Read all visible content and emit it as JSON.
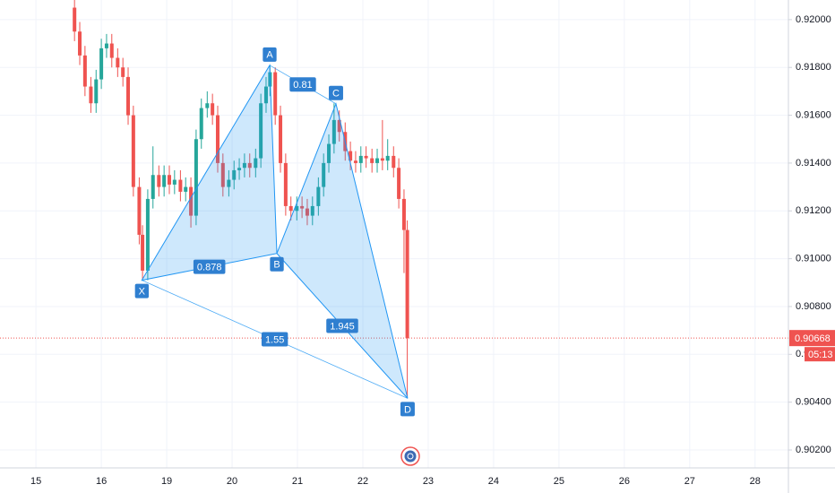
{
  "chart_data": {
    "type": "candlestick",
    "xticks": [
      {
        "value": 0,
        "label": "15"
      },
      {
        "value": 1,
        "label": "16"
      },
      {
        "value": 2,
        "label": "19"
      },
      {
        "value": 3,
        "label": "20"
      },
      {
        "value": 4,
        "label": "21"
      },
      {
        "value": 5,
        "label": "22"
      },
      {
        "value": 6,
        "label": "23"
      },
      {
        "value": 7,
        "label": "24"
      },
      {
        "value": 8,
        "label": "25"
      },
      {
        "value": 9,
        "label": "26"
      },
      {
        "value": 10,
        "label": "27"
      },
      {
        "value": 11,
        "label": "28"
      }
    ],
    "xlim": [
      -0.55,
      11.51
    ],
    "ylim": [
      0.90125,
      0.92082
    ],
    "yticks": [
      {
        "value": 0.902,
        "label": "0.90200"
      },
      {
        "value": 0.904,
        "label": "0.90400"
      },
      {
        "value": 0.906,
        "label": "0.90600"
      },
      {
        "value": 0.908,
        "label": "0.90800"
      },
      {
        "value": 0.91,
        "label": "0.91000"
      },
      {
        "value": 0.912,
        "label": "0.91200"
      },
      {
        "value": 0.914,
        "label": "0.91400"
      },
      {
        "value": 0.916,
        "label": "0.91600"
      },
      {
        "value": 0.918,
        "label": "0.91800"
      },
      {
        "value": 0.92,
        "label": "0.92000"
      }
    ],
    "grid": true,
    "up_color": "#26a69a",
    "down_color": "#ef5350",
    "x": [
      0.59,
      0.67,
      0.75,
      0.84,
      0.92,
      1.0,
      1.08,
      1.16,
      1.25,
      1.33,
      1.41,
      1.49,
      1.58,
      1.63,
      1.71,
      1.79,
      1.88,
      1.96,
      2.04,
      2.12,
      2.21,
      2.29,
      2.37,
      2.45,
      2.53,
      2.62,
      2.7,
      2.78,
      2.86,
      2.95,
      3.03,
      3.11,
      3.19,
      3.27,
      3.36,
      3.44,
      3.52,
      3.58,
      3.66,
      3.74,
      3.82,
      3.9,
      3.99,
      4.07,
      4.15,
      4.23,
      4.32,
      4.4,
      4.48,
      4.56,
      4.64,
      4.73,
      4.81,
      4.89,
      4.97,
      5.05,
      5.14,
      5.22,
      5.3,
      5.38,
      5.47,
      5.55,
      5.63,
      5.68
    ],
    "open": [
      0.9205,
      0.9195,
      0.9185,
      0.9172,
      0.9165,
      0.9175,
      0.9188,
      0.919,
      0.9184,
      0.918,
      0.9176,
      0.916,
      0.913,
      0.911,
      0.9095,
      0.9125,
      0.9135,
      0.913,
      0.9135,
      0.9131,
      0.9133,
      0.9128,
      0.913,
      0.9118,
      0.915,
      0.9163,
      0.9165,
      0.916,
      0.914,
      0.913,
      0.9133,
      0.9137,
      0.9138,
      0.914,
      0.9138,
      0.9142,
      0.9165,
      0.9172,
      0.9178,
      0.916,
      0.914,
      0.9122,
      0.912,
      0.9122,
      0.9121,
      0.9118,
      0.9122,
      0.913,
      0.914,
      0.9148,
      0.9158,
      0.9153,
      0.9145,
      0.9141,
      0.914,
      0.9143,
      0.9142,
      0.914,
      0.9142,
      0.9141,
      0.9143,
      0.9138,
      0.9125,
      0.9112
    ],
    "high": [
      0.9209,
      0.9199,
      0.9189,
      0.9176,
      0.9179,
      0.9192,
      0.9194,
      0.9194,
      0.9188,
      0.9184,
      0.918,
      0.9164,
      0.9134,
      0.9114,
      0.9129,
      0.9147,
      0.9139,
      0.9139,
      0.9139,
      0.9137,
      0.9137,
      0.9134,
      0.9134,
      0.9154,
      0.9167,
      0.917,
      0.9169,
      0.9164,
      0.9144,
      0.9137,
      0.9141,
      0.9142,
      0.9144,
      0.9144,
      0.9146,
      0.9169,
      0.9176,
      0.91809,
      0.918,
      0.9164,
      0.9144,
      0.9126,
      0.9126,
      0.9126,
      0.9125,
      0.9126,
      0.9134,
      0.9144,
      0.9152,
      0.9165,
      0.9162,
      0.9157,
      0.9149,
      0.9145,
      0.9147,
      0.9147,
      0.9146,
      0.9146,
      0.9158,
      0.915,
      0.9147,
      0.9142,
      0.9129,
      0.9116
    ],
    "low": [
      0.9191,
      0.9181,
      0.9168,
      0.9161,
      0.9161,
      0.9171,
      0.9184,
      0.918,
      0.9176,
      0.9172,
      0.9156,
      0.9126,
      0.9106,
      0.9091,
      0.9091,
      0.9121,
      0.9126,
      0.9126,
      0.9127,
      0.9127,
      0.9124,
      0.9124,
      0.9113,
      0.9114,
      0.9146,
      0.9159,
      0.9156,
      0.9136,
      0.9126,
      0.9126,
      0.9129,
      0.9133,
      0.9134,
      0.9134,
      0.9134,
      0.9138,
      0.9161,
      0.9168,
      0.9156,
      0.9136,
      0.9118,
      0.9116,
      0.9116,
      0.9117,
      0.9114,
      0.9114,
      0.9118,
      0.9126,
      0.9136,
      0.9144,
      0.9149,
      0.9141,
      0.9137,
      0.9136,
      0.9136,
      0.9138,
      0.9136,
      0.9136,
      0.9137,
      0.9137,
      0.9134,
      0.9121,
      0.9094,
      0.90416
    ],
    "close": [
      0.9195,
      0.9185,
      0.9172,
      0.9165,
      0.9175,
      0.9188,
      0.919,
      0.9184,
      0.918,
      0.9176,
      0.916,
      0.913,
      0.911,
      0.9095,
      0.9125,
      0.9135,
      0.913,
      0.9135,
      0.9131,
      0.9133,
      0.9128,
      0.913,
      0.9118,
      0.915,
      0.9163,
      0.9165,
      0.916,
      0.914,
      0.913,
      0.9133,
      0.9137,
      0.9138,
      0.914,
      0.9138,
      0.9142,
      0.9165,
      0.9172,
      0.9178,
      0.916,
      0.914,
      0.9122,
      0.912,
      0.9122,
      0.9121,
      0.9118,
      0.9122,
      0.913,
      0.914,
      0.9148,
      0.9158,
      0.9153,
      0.9145,
      0.9141,
      0.914,
      0.9143,
      0.9142,
      0.914,
      0.9142,
      0.9141,
      0.9143,
      0.9138,
      0.9125,
      0.9112,
      0.90668
    ],
    "current_price": 0.90668,
    "countdown": "05:13",
    "pattern": {
      "color": "#2196f3",
      "points": [
        {
          "label": "X",
          "x": 1.62,
          "y": 0.9091
        },
        {
          "label": "A",
          "x": 3.575,
          "y": 0.91809
        },
        {
          "label": "B",
          "x": 3.685,
          "y": 0.91022
        },
        {
          "label": "C",
          "x": 4.589,
          "y": 0.91648
        },
        {
          "label": "D",
          "x": 5.685,
          "y": 0.90416
        }
      ],
      "ratios": [
        0.878,
        0.81,
        1.945,
        1.55
      ]
    }
  }
}
